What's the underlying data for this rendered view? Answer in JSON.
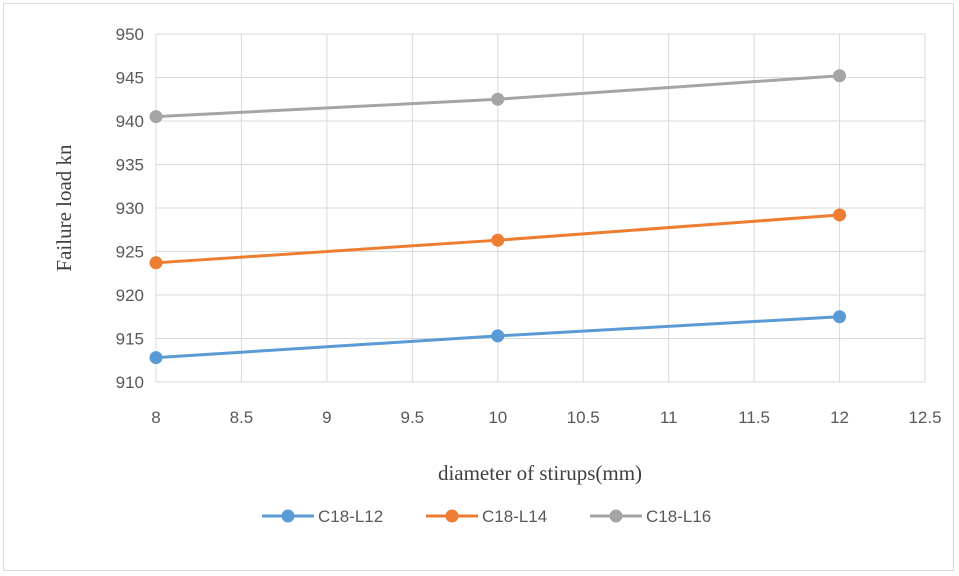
{
  "chart_data": {
    "type": "scatter",
    "xlabel": "diameter of stirups(mm)",
    "ylabel": "Failure load kn",
    "xlim": [
      8,
      12.5
    ],
    "ylim": [
      910,
      950
    ],
    "x_ticks": [
      "8",
      "8.5",
      "9",
      "9.5",
      "10",
      "10.5",
      "11",
      "11.5",
      "12",
      "12.5"
    ],
    "y_ticks": [
      "910",
      "915",
      "920",
      "925",
      "930",
      "935",
      "940",
      "945",
      "950"
    ],
    "grid": true,
    "legend_position": "bottom",
    "x": [
      8,
      10,
      12
    ],
    "series": [
      {
        "name": "C18-L12",
        "values": [
          912.8,
          915.3,
          917.5
        ],
        "color": "#5b9bd5"
      },
      {
        "name": "C18-L14",
        "values": [
          923.7,
          926.3,
          929.2
        ],
        "color": "#ed7d31"
      },
      {
        "name": "C18-L16",
        "values": [
          940.5,
          942.5,
          945.2
        ],
        "color": "#a5a5a5"
      }
    ]
  }
}
